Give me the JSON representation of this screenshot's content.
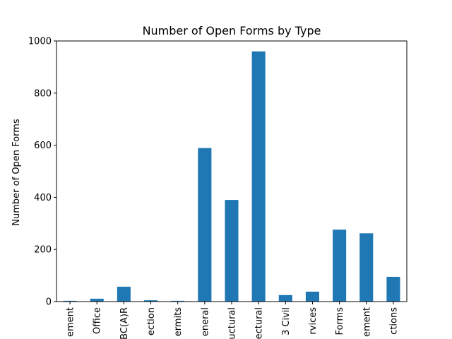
{
  "chart_data": {
    "type": "bar",
    "title": "Number of Open Forms by Type",
    "xlabel": "",
    "ylabel": "Number of Open Forms",
    "ylim": [
      0,
      1000
    ],
    "yticks": [
      0,
      200,
      400,
      600,
      800,
      1000
    ],
    "grid": false,
    "bar_color": "#1f77b4",
    "categories": [
      "ement",
      "Office",
      "BC(A)R",
      "ection",
      "ermits",
      "eneral",
      "uctural",
      "ectural",
      "3 Civil",
      "rvices",
      "Forms",
      "ement",
      "ctions"
    ],
    "values": [
      3,
      11,
      57,
      5,
      3,
      589,
      390,
      960,
      25,
      38,
      276,
      262,
      95
    ]
  }
}
